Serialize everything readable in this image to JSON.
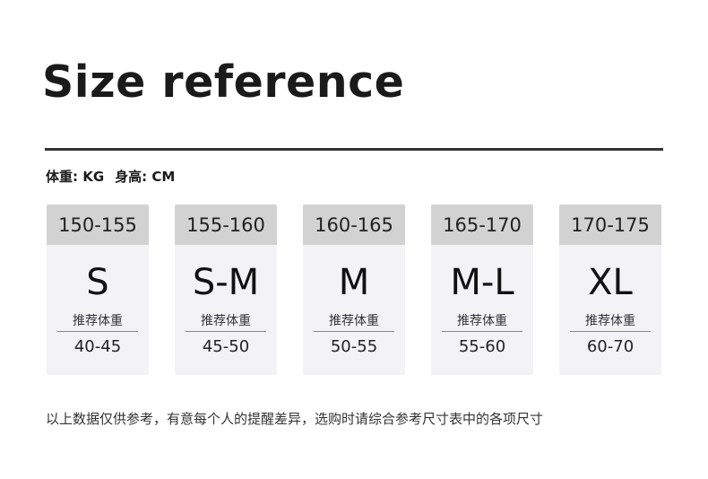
{
  "title": "Size reference",
  "units": {
    "weight": "体重: KG",
    "height": "身高: CM"
  },
  "weight_label": "推荐体重",
  "sizes": [
    {
      "height": "150-155",
      "size": "S",
      "weight": "40-45"
    },
    {
      "height": "155-160",
      "size": "S-M",
      "weight": "45-50"
    },
    {
      "height": "160-165",
      "size": "M",
      "weight": "50-55"
    },
    {
      "height": "165-170",
      "size": "M-L",
      "weight": "55-60"
    },
    {
      "height": "170-175",
      "size": "XL",
      "weight": "60-70"
    }
  ],
  "note": "以上数据仅供参考，有意每个人的提醒差异，选购时请综合参考尺寸表中的各项尺寸"
}
